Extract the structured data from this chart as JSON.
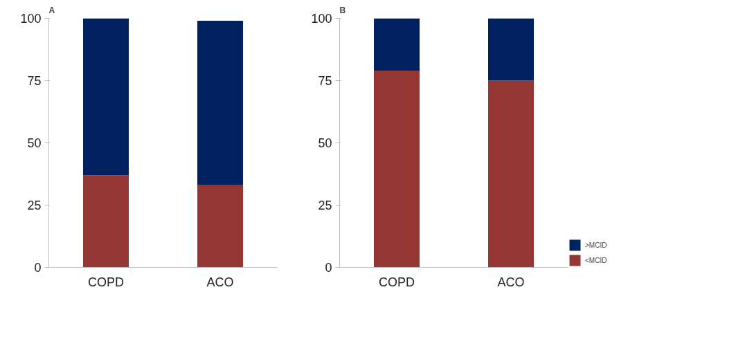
{
  "chart_data": [
    {
      "type": "bar",
      "title": "A",
      "stacked": true,
      "categories": [
        "COPD",
        "ACO"
      ],
      "ylim": [
        0,
        100
      ],
      "yticks": [
        0,
        25,
        50,
        75,
        100
      ],
      "grid": false,
      "series": [
        {
          "color": "#943634",
          "values": [
            37,
            33
          ]
        },
        {
          "color": "#002060",
          "values": [
            63,
            66
          ]
        }
      ]
    },
    {
      "type": "bar",
      "title": "B",
      "stacked": true,
      "categories": [
        "COPD",
        "ACO"
      ],
      "ylim": [
        0,
        100
      ],
      "yticks": [
        0,
        25,
        50,
        75,
        100
      ],
      "grid": false,
      "legend": "bottom right",
      "series": [
        {
          "name": "<MCID",
          "color": "#943634",
          "values": [
            79,
            75
          ]
        },
        {
          "name": ">MCID",
          "color": "#002060",
          "values": [
            21,
            25
          ]
        }
      ]
    }
  ]
}
